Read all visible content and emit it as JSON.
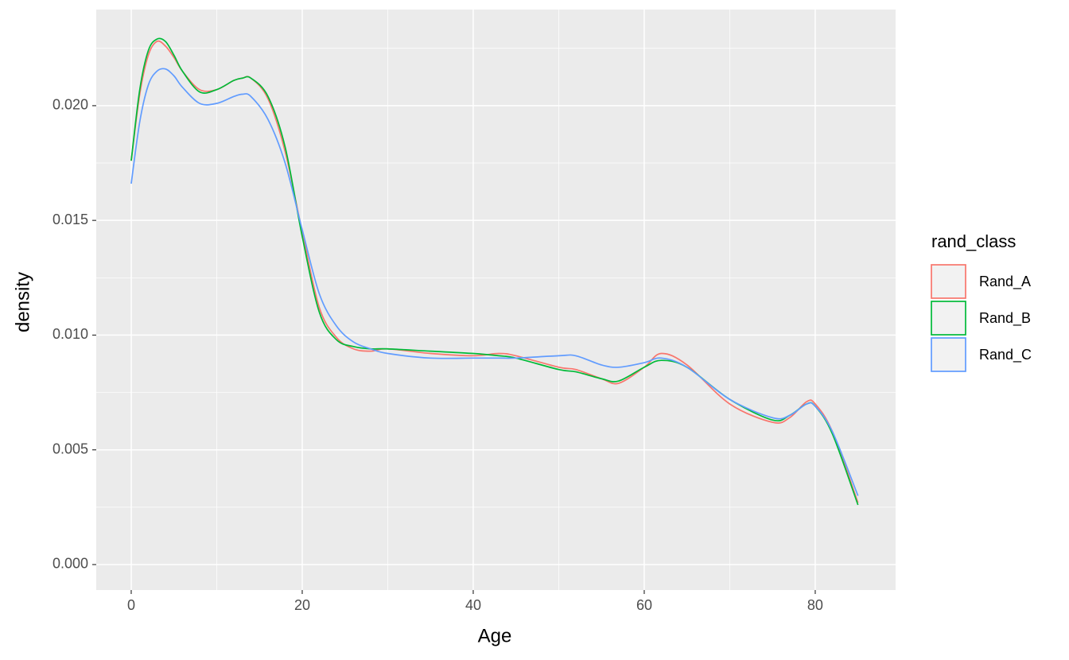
{
  "chart_data": {
    "type": "line",
    "x_label": "Age",
    "y_label": "density",
    "x": [
      0,
      1,
      2,
      3,
      4,
      5,
      6,
      8,
      10,
      12,
      13,
      14,
      16,
      18,
      20,
      22,
      24,
      26,
      28,
      30,
      35,
      40,
      43,
      45,
      50,
      52,
      55,
      57,
      60,
      62,
      65,
      70,
      75,
      77,
      79,
      80,
      82,
      85
    ],
    "series": [
      {
        "name": "Rand_A",
        "color": "#f8766d",
        "values": [
          0.0176,
          0.0205,
          0.0222,
          0.0228,
          0.0226,
          0.0221,
          0.0215,
          0.0207,
          0.0207,
          0.0211,
          0.0212,
          0.0212,
          0.0203,
          0.018,
          0.0145,
          0.0112,
          0.0099,
          0.0094,
          0.0093,
          0.0094,
          0.0092,
          0.0091,
          0.0092,
          0.0091,
          0.0086,
          0.0085,
          0.0081,
          0.0079,
          0.0086,
          0.0092,
          0.0087,
          0.007,
          0.0062,
          0.0064,
          0.0071,
          0.007,
          0.0058,
          0.0027
        ]
      },
      {
        "name": "Rand_B",
        "color": "#00ba38",
        "values": [
          0.0176,
          0.0207,
          0.0224,
          0.0229,
          0.0228,
          0.0222,
          0.0215,
          0.0206,
          0.0207,
          0.0211,
          0.0212,
          0.0212,
          0.0204,
          0.0182,
          0.0143,
          0.011,
          0.0098,
          0.0095,
          0.0094,
          0.0094,
          0.0093,
          0.0092,
          0.0091,
          0.009,
          0.0085,
          0.0084,
          0.0081,
          0.008,
          0.0086,
          0.0089,
          0.0086,
          0.0072,
          0.0063,
          0.0065,
          0.007,
          0.0069,
          0.0057,
          0.0026
        ]
      },
      {
        "name": "Rand_C",
        "color": "#619cff",
        "values": [
          0.0166,
          0.0193,
          0.0209,
          0.0215,
          0.0216,
          0.0213,
          0.0208,
          0.0201,
          0.0201,
          0.0204,
          0.0205,
          0.0204,
          0.0194,
          0.0175,
          0.0146,
          0.0118,
          0.0104,
          0.0097,
          0.0094,
          0.0092,
          0.009,
          0.009,
          0.009,
          0.009,
          0.0091,
          0.0091,
          0.0087,
          0.0086,
          0.0088,
          0.009,
          0.0086,
          0.0072,
          0.0064,
          0.0065,
          0.007,
          0.0069,
          0.0058,
          0.003
        ]
      }
    ],
    "legend_title": "rand_class",
    "legend_position": "right",
    "xlim": [
      -4.09,
      89.4
    ],
    "xticks": [
      0,
      20,
      40,
      60,
      80
    ],
    "ylim": [
      -0.00111,
      0.02419
    ],
    "yticks": [
      {
        "value": 0,
        "label": "0.000"
      },
      {
        "value": 0.005,
        "label": "0.005"
      },
      {
        "value": 0.01,
        "label": "0.010"
      },
      {
        "value": 0.015,
        "label": "0.015"
      },
      {
        "value": 0.02,
        "label": "0.020"
      }
    ],
    "grid": true
  }
}
